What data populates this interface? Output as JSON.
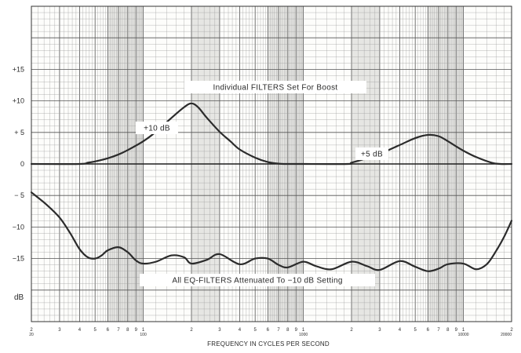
{
  "chart_data": {
    "type": "line",
    "title": "",
    "xlabel": "FREQUENCY IN CYCLES PER SECOND",
    "ylabel": "dB",
    "x_scale": "log",
    "xlim": [
      20,
      20000
    ],
    "ylim": [
      -25,
      25
    ],
    "grid": true,
    "y_ticks": [
      {
        "value": 15,
        "label": "+15"
      },
      {
        "value": 10,
        "label": "+10"
      },
      {
        "value": 5,
        "label": "+ 5"
      },
      {
        "value": 0,
        "label": "0"
      },
      {
        "value": -5,
        "label": "− 5"
      },
      {
        "value": -10,
        "label": "−10"
      },
      {
        "value": -15,
        "label": "−15"
      }
    ],
    "x_ticks": [
      {
        "value": 20,
        "label": "2",
        "sub": "20"
      },
      {
        "value": 30,
        "label": "3"
      },
      {
        "value": 40,
        "label": "4"
      },
      {
        "value": 50,
        "label": "5"
      },
      {
        "value": 60,
        "label": "6"
      },
      {
        "value": 70,
        "label": "7"
      },
      {
        "value": 80,
        "label": "8"
      },
      {
        "value": 90,
        "label": "9"
      },
      {
        "value": 100,
        "label": "1",
        "sub": "100"
      },
      {
        "value": 200,
        "label": "2"
      },
      {
        "value": 300,
        "label": "3"
      },
      {
        "value": 400,
        "label": "4"
      },
      {
        "value": 500,
        "label": "5"
      },
      {
        "value": 600,
        "label": "6"
      },
      {
        "value": 700,
        "label": "7"
      },
      {
        "value": 800,
        "label": "8"
      },
      {
        "value": 900,
        "label": "9"
      },
      {
        "value": 1000,
        "label": "1",
        "sub": "1000"
      },
      {
        "value": 2000,
        "label": "2"
      },
      {
        "value": 3000,
        "label": "3"
      },
      {
        "value": 4000,
        "label": "4"
      },
      {
        "value": 5000,
        "label": "5"
      },
      {
        "value": 6000,
        "label": "6"
      },
      {
        "value": 7000,
        "label": "7"
      },
      {
        "value": 8000,
        "label": "8"
      },
      {
        "value": 9000,
        "label": "9"
      },
      {
        "value": 10000,
        "label": "1",
        "sub": "10000"
      },
      {
        "value": 20000,
        "label": "2",
        "sub": "20000"
      }
    ],
    "series": [
      {
        "name": "+10 dB",
        "x": [
          20,
          40,
          45,
          50,
          60,
          70,
          80,
          100,
          120,
          150,
          180,
          200,
          220,
          250,
          300,
          350,
          400,
          500,
          600,
          700,
          800,
          1000
        ],
        "y": [
          0,
          0,
          0.2,
          0.4,
          0.9,
          1.5,
          2.2,
          3.6,
          5.1,
          7.3,
          9.0,
          9.6,
          9.0,
          7.3,
          5.1,
          3.6,
          2.3,
          1.0,
          0.3,
          0.05,
          0,
          0
        ]
      },
      {
        "name": "+5 dB",
        "x": [
          1000,
          1900,
          2000,
          2500,
          3000,
          4000,
          5000,
          6000,
          7000,
          8000,
          10000,
          12000,
          15000,
          17000,
          20000
        ],
        "y": [
          0,
          0,
          0.2,
          0.9,
          1.6,
          3.0,
          4.1,
          4.6,
          4.4,
          3.6,
          2.1,
          1.1,
          0.2,
          0,
          0
        ]
      },
      {
        "name": "All EQ-FILTERS Attenuated To −10 dB Setting",
        "x": [
          20,
          25,
          30,
          35,
          40,
          45,
          50,
          55,
          60,
          70,
          80,
          90,
          100,
          120,
          150,
          180,
          200,
          250,
          300,
          400,
          500,
          600,
          700,
          800,
          1000,
          1200,
          1500,
          2000,
          2500,
          3000,
          4000,
          5000,
          6000,
          7000,
          8000,
          10000,
          12000,
          14000,
          16000,
          18000,
          20000
        ],
        "y": [
          -4.5,
          -6.5,
          -8.5,
          -11.0,
          -13.5,
          -14.8,
          -15.0,
          -14.5,
          -13.7,
          -13.2,
          -14.0,
          -15.3,
          -15.8,
          -15.5,
          -14.5,
          -14.8,
          -15.8,
          -15.2,
          -14.3,
          -15.9,
          -15.0,
          -15.0,
          -16.0,
          -16.4,
          -15.5,
          -16.2,
          -16.7,
          -15.5,
          -16.2,
          -16.8,
          -15.4,
          -16.3,
          -17.0,
          -16.6,
          -15.9,
          -15.8,
          -16.7,
          -15.9,
          -13.8,
          -11.5,
          -9.0
        ]
      }
    ],
    "annotations": [
      {
        "text": "Individual FILTERS Set For Boost"
      },
      {
        "text": "+10 dB"
      },
      {
        "text": "+5 dB"
      },
      {
        "text": "All EQ-FILTERS Attenuated To −10 dB Setting"
      }
    ]
  }
}
